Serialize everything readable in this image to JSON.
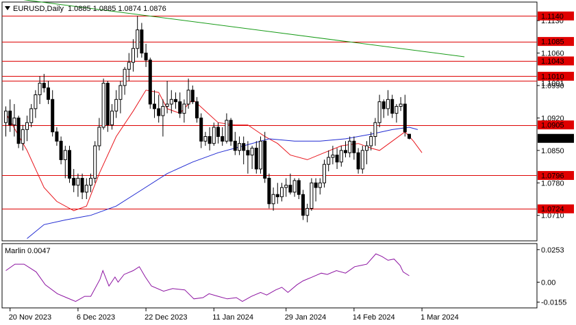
{
  "header": {
    "symbol": "EURUSD,Daily",
    "ohlc": "1.0885 1.0885 1.0874 1.0876"
  },
  "colors": {
    "background": "#ffffff",
    "frame": "#000000",
    "bull": "#ffffff",
    "bear": "#000000",
    "ma_red": "#e8141b",
    "ma_blue": "#1e28d2",
    "trend": "#159a15",
    "level": "#dd0000",
    "osc": "#8b10a0",
    "tag": "#e00000",
    "price_tag": "#000000"
  },
  "chart_data": [
    {
      "type": "candlestick",
      "ylim": [
        1.0655,
        1.117
      ],
      "y_ticks": [
        "1.1130",
        "1.1060",
        "1.0990",
        "1.0920",
        "1.0850",
        "1.0780",
        "1.0710"
      ],
      "x_ticks": [
        "20 Nov 2023",
        "6 Dec 2023",
        "22 Dec 2023",
        "11 Jan 2024",
        "29 Jan 2024",
        "14 Feb 2024",
        "1 Mar 2024"
      ],
      "levels": [
        {
          "value": 1.114,
          "label": "1.1140"
        },
        {
          "value": 1.1085,
          "label": "1.1085"
        },
        {
          "value": 1.1043,
          "label": "1.1043"
        },
        {
          "value": 1.101,
          "label": "1.1010"
        },
        {
          "value": 1.1001,
          "label": "1.1001"
        },
        {
          "value": 1.0905,
          "label": "1.0905"
        },
        {
          "value": 1.0796,
          "label": "1.0796"
        },
        {
          "value": 1.0724,
          "label": "1.0724"
        }
      ],
      "current_price": {
        "value": 1.0876,
        "label": "1.0876"
      },
      "trendline": {
        "from": [
          0,
          1.118
        ],
        "to": [
          108,
          1.1052
        ]
      },
      "candles": [
        [
          1.091,
          1.0945,
          1.088,
          1.0935
        ],
        [
          1.0935,
          1.096,
          1.089,
          1.0905
        ],
        [
          1.0905,
          1.095,
          1.088,
          1.092
        ],
        [
          1.092,
          1.0925,
          1.0855,
          1.0865
        ],
        [
          1.0865,
          1.0905,
          1.085,
          1.0895
        ],
        [
          1.0895,
          1.0925,
          1.087,
          1.091
        ],
        [
          1.091,
          1.095,
          1.09,
          1.094
        ],
        [
          1.094,
          1.098,
          1.092,
          1.097
        ],
        [
          1.097,
          1.101,
          1.095,
          1.0995
        ],
        [
          1.0995,
          1.1015,
          1.0975,
          1.0985
        ],
        [
          1.0985,
          1.1,
          1.095,
          1.096
        ],
        [
          1.096,
          1.098,
          1.088,
          1.089
        ],
        [
          1.089,
          1.09,
          1.086,
          1.087
        ],
        [
          1.087,
          1.088,
          1.082,
          1.083
        ],
        [
          1.083,
          1.086,
          1.079,
          1.085
        ],
        [
          1.085,
          1.086,
          1.078,
          1.079
        ],
        [
          1.079,
          1.081,
          1.076,
          1.0775
        ],
        [
          1.0775,
          1.08,
          1.075,
          1.079
        ],
        [
          1.079,
          1.08,
          1.0745,
          1.076
        ],
        [
          1.076,
          1.079,
          1.0745,
          1.0775
        ],
        [
          1.0775,
          1.08,
          1.076,
          1.079
        ],
        [
          1.079,
          1.087,
          1.078,
          1.086
        ],
        [
          1.086,
          1.092,
          1.085,
          1.09
        ],
        [
          1.09,
          1.1005,
          1.0895,
          1.0995
        ],
        [
          1.0995,
          1.1,
          1.089,
          1.0905
        ],
        [
          1.0905,
          1.095,
          1.0895,
          1.0935
        ],
        [
          1.0935,
          1.098,
          1.092,
          1.096
        ],
        [
          1.096,
          1.1,
          1.093,
          1.099
        ],
        [
          1.099,
          1.103,
          1.097,
          1.1025
        ],
        [
          1.1025,
          1.106,
          1.1,
          1.104
        ],
        [
          1.104,
          1.109,
          1.102,
          1.107
        ],
        [
          1.107,
          1.114,
          1.105,
          1.111
        ],
        [
          1.111,
          1.1125,
          1.105,
          1.106
        ],
        [
          1.106,
          1.108,
          1.103,
          1.1045
        ],
        [
          1.1045,
          1.105,
          1.094,
          1.095
        ],
        [
          1.095,
          1.098,
          1.092,
          1.094
        ],
        [
          1.094,
          1.097,
          1.091,
          1.0925
        ],
        [
          1.0925,
          1.096,
          1.088,
          1.0945
        ],
        [
          1.0945,
          1.1,
          1.093,
          1.095
        ],
        [
          1.095,
          1.098,
          1.093,
          1.096
        ],
        [
          1.096,
          1.0975,
          1.094,
          1.0955
        ],
        [
          1.0955,
          1.0975,
          1.092,
          1.093
        ],
        [
          1.093,
          1.096,
          1.091,
          1.095
        ],
        [
          1.095,
          1.1005,
          1.094,
          1.098
        ],
        [
          1.098,
          1.099,
          1.095,
          1.0955
        ],
        [
          1.0955,
          1.0965,
          1.091,
          1.092
        ],
        [
          1.092,
          1.093,
          1.0855,
          1.087
        ],
        [
          1.087,
          1.089,
          1.086,
          1.088
        ],
        [
          1.088,
          1.09,
          1.085,
          1.0865
        ],
        [
          1.0865,
          1.091,
          1.086,
          1.09
        ],
        [
          1.09,
          1.091,
          1.0865,
          1.088
        ],
        [
          1.088,
          1.09,
          1.086,
          1.087
        ],
        [
          1.087,
          1.093,
          1.0865,
          1.0915
        ],
        [
          1.0915,
          1.092,
          1.086,
          1.087
        ],
        [
          1.087,
          1.089,
          1.084,
          1.085
        ],
        [
          1.085,
          1.088,
          1.084,
          1.0865
        ],
        [
          1.0865,
          1.088,
          1.082,
          1.085
        ],
        [
          1.085,
          1.087,
          1.08,
          1.084
        ],
        [
          1.084,
          1.086,
          1.081,
          1.0855
        ],
        [
          1.0855,
          1.087,
          1.08,
          1.081
        ],
        [
          1.081,
          1.088,
          1.08,
          1.087
        ],
        [
          1.087,
          1.089,
          1.078,
          1.079
        ],
        [
          1.079,
          1.08,
          1.0725,
          1.0735
        ],
        [
          1.0735,
          1.077,
          1.072,
          1.0755
        ],
        [
          1.0755,
          1.078,
          1.0735,
          1.075
        ],
        [
          1.075,
          1.078,
          1.074,
          1.077
        ],
        [
          1.077,
          1.079,
          1.075,
          1.0775
        ],
        [
          1.0775,
          1.08,
          1.0755,
          1.076
        ],
        [
          1.076,
          1.079,
          1.075,
          1.0785
        ],
        [
          1.0785,
          1.079,
          1.0745,
          1.0755
        ],
        [
          1.0755,
          1.0765,
          1.07,
          1.071
        ],
        [
          1.071,
          1.0735,
          1.0695,
          1.0725
        ],
        [
          1.0725,
          1.079,
          1.072,
          1.078
        ],
        [
          1.078,
          1.079,
          1.074,
          1.077
        ],
        [
          1.077,
          1.079,
          1.0755,
          1.078
        ],
        [
          1.078,
          1.083,
          1.077,
          1.082
        ],
        [
          1.082,
          1.085,
          1.0805,
          1.0835
        ],
        [
          1.0835,
          1.086,
          1.082,
          1.084
        ],
        [
          1.084,
          1.0855,
          1.081,
          1.0825
        ],
        [
          1.0825,
          1.086,
          1.0815,
          1.085
        ],
        [
          1.085,
          1.087,
          1.0835,
          1.0845
        ],
        [
          1.0845,
          1.088,
          1.0835,
          1.087
        ],
        [
          1.087,
          1.088,
          1.083,
          1.0845
        ],
        [
          1.0845,
          1.0855,
          1.08,
          1.081
        ],
        [
          1.081,
          1.086,
          1.08,
          1.085
        ],
        [
          1.085,
          1.087,
          1.082,
          1.086
        ],
        [
          1.086,
          1.089,
          1.085,
          1.088
        ],
        [
          1.088,
          1.092,
          1.086,
          1.091
        ],
        [
          1.091,
          1.097,
          1.09,
          1.0955
        ],
        [
          1.0955,
          1.096,
          1.092,
          1.094
        ],
        [
          1.094,
          1.098,
          1.0925,
          1.096
        ],
        [
          1.096,
          1.097,
          1.092,
          1.093
        ],
        [
          1.093,
          1.095,
          1.091,
          1.0945
        ],
        [
          1.0945,
          1.0965,
          1.0935,
          1.095
        ],
        [
          1.095,
          1.097,
          1.088,
          1.089
        ],
        [
          1.0885,
          1.0885,
          1.0874,
          1.0876
        ]
      ],
      "ma_red": [
        [
          0,
          1.093
        ],
        [
          5,
          1.085
        ],
        [
          9,
          1.077
        ],
        [
          12,
          1.074
        ],
        [
          16,
          1.072
        ],
        [
          19,
          1.073
        ],
        [
          22,
          1.08
        ],
        [
          26,
          1.088
        ],
        [
          30,
          1.0935
        ],
        [
          33,
          1.098
        ],
        [
          36,
          1.0975
        ],
        [
          38,
          1.094
        ],
        [
          41,
          1.093
        ],
        [
          44,
          1.096
        ],
        [
          47,
          1.0935
        ],
        [
          50,
          1.091
        ],
        [
          54,
          1.0905
        ],
        [
          57,
          1.0905
        ],
        [
          61,
          1.088
        ],
        [
          64,
          1.0865
        ],
        [
          67,
          1.084
        ],
        [
          71,
          1.083
        ],
        [
          75,
          1.0845
        ],
        [
          79,
          1.086
        ],
        [
          83,
          1.0865
        ],
        [
          86,
          1.0855
        ],
        [
          88,
          1.085
        ],
        [
          91,
          1.087
        ],
        [
          94,
          1.089
        ],
        [
          96,
          1.087
        ],
        [
          98,
          1.0845
        ]
      ],
      "ma_blue": [
        [
          5,
          1.066
        ],
        [
          9,
          1.069
        ],
        [
          14,
          1.07
        ],
        [
          20,
          1.071
        ],
        [
          26,
          1.073
        ],
        [
          32,
          1.0765
        ],
        [
          38,
          1.08
        ],
        [
          44,
          1.0825
        ],
        [
          50,
          1.0845
        ],
        [
          56,
          1.086
        ],
        [
          62,
          1.0875
        ],
        [
          68,
          1.087
        ],
        [
          74,
          1.087
        ],
        [
          80,
          1.0875
        ],
        [
          86,
          1.0885
        ],
        [
          91,
          1.0895
        ],
        [
          95,
          1.09
        ],
        [
          97,
          1.0895
        ]
      ]
    },
    {
      "type": "line",
      "title": "Marlin 0.0047",
      "ylim": [
        -0.02,
        0.03
      ],
      "y_ticks": [
        {
          "value": 0.0253,
          "label": "0.0253"
        },
        {
          "value": 0.0,
          "label": "0.00"
        },
        {
          "value": -0.0155,
          "label": "-0.0155"
        }
      ],
      "values": [
        [
          0,
          0.009
        ],
        [
          3,
          0.014
        ],
        [
          6,
          0.014
        ],
        [
          10,
          0.008
        ],
        [
          13,
          -0.002
        ],
        [
          17,
          -0.009
        ],
        [
          20,
          -0.012
        ],
        [
          23,
          -0.015
        ],
        [
          26,
          -0.011
        ],
        [
          28,
          -0.011
        ],
        [
          31,
          0.002
        ],
        [
          32,
          0.009
        ],
        [
          34,
          -0.003
        ],
        [
          36,
          0.004
        ],
        [
          37,
          0.0
        ],
        [
          39,
          0.006
        ],
        [
          42,
          0.009
        ],
        [
          44,
          0.012
        ],
        [
          46,
          0.004
        ],
        [
          48,
          -0.003
        ],
        [
          52,
          -0.007
        ],
        [
          55,
          -0.005
        ],
        [
          59,
          -0.006
        ],
        [
          62,
          -0.013
        ],
        [
          65,
          -0.012
        ],
        [
          67,
          -0.009
        ],
        [
          70,
          -0.011
        ],
        [
          73,
          -0.013
        ],
        [
          76,
          -0.012
        ],
        [
          78,
          -0.015
        ],
        [
          81,
          -0.011
        ],
        [
          84,
          -0.008
        ],
        [
          86,
          -0.01
        ],
        [
          89,
          -0.006
        ],
        [
          91,
          -0.004
        ],
        [
          93,
          -0.008
        ],
        [
          96,
          -0.002
        ],
        [
          98,
          0.001
        ],
        [
          101,
          0.004
        ],
        [
          104,
          0.007
        ],
        [
          106,
          0.006
        ],
        [
          109,
          0.009
        ],
        [
          112,
          0.007
        ],
        [
          115,
          0.012
        ],
        [
          117,
          0.013
        ],
        [
          119,
          0.014
        ],
        [
          122,
          0.022
        ],
        [
          124,
          0.02
        ],
        [
          126,
          0.017
        ],
        [
          128,
          0.018
        ],
        [
          130,
          0.013
        ],
        [
          131,
          0.008
        ],
        [
          133,
          0.005
        ]
      ],
      "x_last": 133
    }
  ]
}
